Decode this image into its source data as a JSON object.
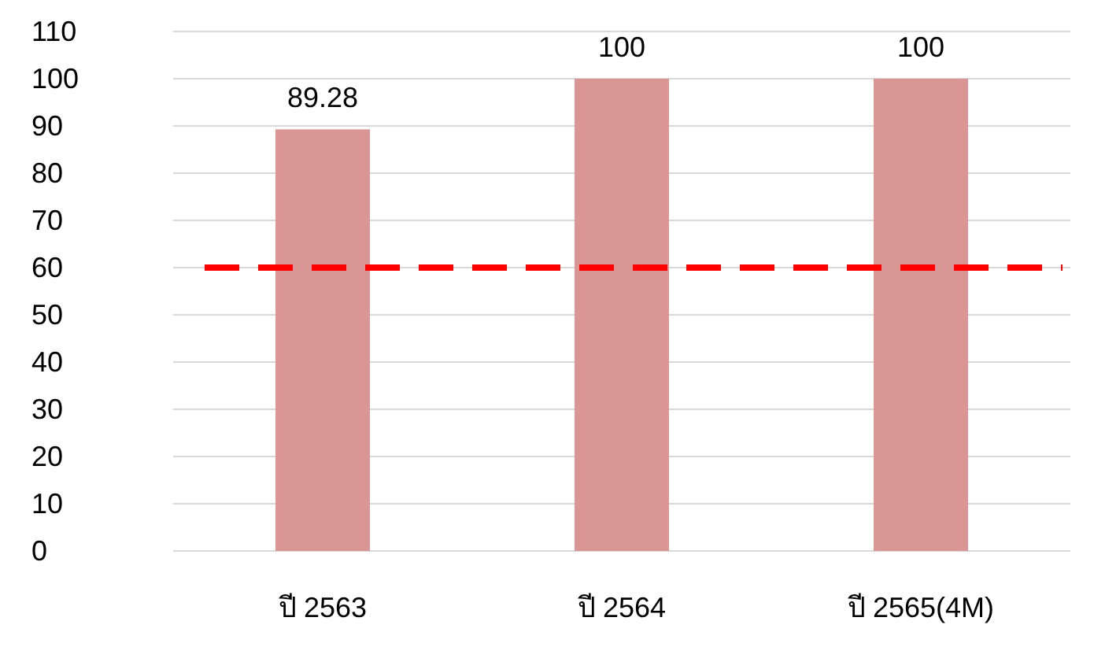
{
  "chart_data": {
    "type": "bar",
    "categories": [
      "ปี 2563",
      "ปี 2564",
      "ปี 2565(4M)"
    ],
    "values": [
      89.28,
      100,
      100
    ],
    "color": "#d99694",
    "ylim": [
      0,
      110
    ],
    "yticks": [
      0,
      10,
      20,
      30,
      40,
      50,
      60,
      70,
      80,
      90,
      100,
      110
    ],
    "grid": "y",
    "data_labels": true,
    "ref_lines": [
      {
        "axis": "y",
        "value": 60,
        "color": "#ff0000",
        "line_style": "dashed"
      }
    ]
  }
}
